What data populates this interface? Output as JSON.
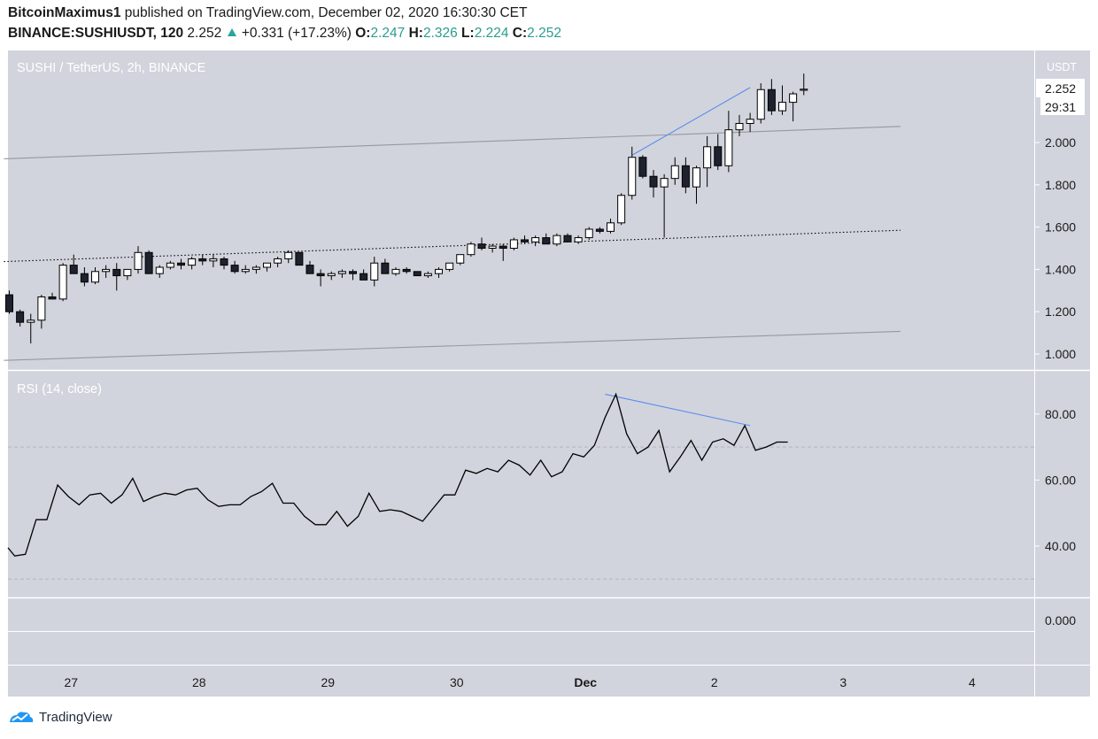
{
  "header": {
    "author": "BitcoinMaximus1",
    "published": "published on TradingView.com, December 02, 2020 16:30:30 CET",
    "symbol": "BINANCE:SUSHIUSDT, 120",
    "price": "2.252",
    "change": "+0.331 (+17.23%)",
    "o_label": "O:",
    "o_val": "2.247",
    "h_label": "H:",
    "h_val": "2.326",
    "l_label": "L:",
    "l_val": "2.224",
    "c_label": "C:",
    "c_val": "2.252"
  },
  "main_pane": {
    "title": "SUSHI / TetherUS, 2h, BINANCE",
    "currency": "USDT",
    "price_badge": "2.252",
    "countdown": "29:31"
  },
  "rsi_pane": {
    "title": "RSI (14, close)"
  },
  "footer": {
    "brand": "TradingView"
  },
  "colors": {
    "up_fill": "#ffffff",
    "down_fill": "#1e222d",
    "trendline": "#5b8def",
    "pane_bg": "#d1d4dc",
    "indicator_line": "#000000"
  },
  "chart_data": [
    {
      "type": "candlestick",
      "title": "SUSHI / TetherUS, 2h, BINANCE",
      "ylim": [
        0.95,
        2.43
      ],
      "y_ticks": [
        "1.000",
        "1.200",
        "1.400",
        "1.600",
        "1.800",
        "2.000"
      ],
      "x_ticks": [
        {
          "label": "27",
          "index": 6
        },
        {
          "label": "28",
          "index": 18
        },
        {
          "label": "29",
          "index": 30
        },
        {
          "label": "30",
          "index": 42
        },
        {
          "label": "Dec",
          "index": 54
        },
        {
          "label": "2",
          "index": 66
        },
        {
          "label": "3",
          "index": 78
        },
        {
          "label": "4",
          "index": 90
        }
      ],
      "candles": [
        [
          1.28,
          1.3,
          1.19,
          1.2
        ],
        [
          1.2,
          1.21,
          1.13,
          1.15
        ],
        [
          1.15,
          1.19,
          1.05,
          1.16
        ],
        [
          1.16,
          1.28,
          1.12,
          1.27
        ],
        [
          1.27,
          1.29,
          1.26,
          1.26
        ],
        [
          1.26,
          1.43,
          1.25,
          1.42
        ],
        [
          1.42,
          1.47,
          1.39,
          1.38
        ],
        [
          1.38,
          1.41,
          1.32,
          1.34
        ],
        [
          1.34,
          1.41,
          1.33,
          1.39
        ],
        [
          1.39,
          1.42,
          1.36,
          1.4
        ],
        [
          1.4,
          1.43,
          1.3,
          1.37
        ],
        [
          1.37,
          1.4,
          1.35,
          1.4
        ],
        [
          1.4,
          1.51,
          1.38,
          1.48
        ],
        [
          1.48,
          1.49,
          1.39,
          1.38
        ],
        [
          1.38,
          1.42,
          1.36,
          1.41
        ],
        [
          1.41,
          1.44,
          1.4,
          1.43
        ],
        [
          1.43,
          1.45,
          1.4,
          1.42
        ],
        [
          1.42,
          1.46,
          1.4,
          1.45
        ],
        [
          1.45,
          1.47,
          1.42,
          1.44
        ],
        [
          1.44,
          1.47,
          1.41,
          1.45
        ],
        [
          1.45,
          1.46,
          1.4,
          1.42
        ],
        [
          1.42,
          1.44,
          1.38,
          1.39
        ],
        [
          1.39,
          1.42,
          1.38,
          1.4
        ],
        [
          1.4,
          1.42,
          1.38,
          1.41
        ],
        [
          1.41,
          1.43,
          1.39,
          1.43
        ],
        [
          1.43,
          1.46,
          1.41,
          1.45
        ],
        [
          1.45,
          1.49,
          1.43,
          1.48
        ],
        [
          1.48,
          1.48,
          1.42,
          1.42
        ],
        [
          1.42,
          1.44,
          1.38,
          1.38
        ],
        [
          1.38,
          1.4,
          1.32,
          1.37
        ],
        [
          1.37,
          1.39,
          1.35,
          1.38
        ],
        [
          1.38,
          1.4,
          1.36,
          1.39
        ],
        [
          1.39,
          1.4,
          1.35,
          1.38
        ],
        [
          1.38,
          1.4,
          1.35,
          1.35
        ],
        [
          1.35,
          1.46,
          1.32,
          1.43
        ],
        [
          1.43,
          1.45,
          1.38,
          1.38
        ],
        [
          1.38,
          1.41,
          1.37,
          1.4
        ],
        [
          1.4,
          1.41,
          1.38,
          1.39
        ],
        [
          1.39,
          1.39,
          1.37,
          1.37
        ],
        [
          1.37,
          1.39,
          1.36,
          1.38
        ],
        [
          1.38,
          1.41,
          1.36,
          1.4
        ],
        [
          1.4,
          1.43,
          1.39,
          1.43
        ],
        [
          1.43,
          1.47,
          1.42,
          1.47
        ],
        [
          1.47,
          1.53,
          1.46,
          1.52
        ],
        [
          1.52,
          1.55,
          1.49,
          1.5
        ],
        [
          1.5,
          1.52,
          1.48,
          1.51
        ],
        [
          1.51,
          1.52,
          1.44,
          1.5
        ],
        [
          1.5,
          1.55,
          1.49,
          1.54
        ],
        [
          1.54,
          1.56,
          1.52,
          1.53
        ],
        [
          1.53,
          1.56,
          1.51,
          1.55
        ],
        [
          1.55,
          1.57,
          1.52,
          1.52
        ],
        [
          1.52,
          1.57,
          1.51,
          1.56
        ],
        [
          1.56,
          1.57,
          1.53,
          1.53
        ],
        [
          1.53,
          1.56,
          1.52,
          1.55
        ],
        [
          1.55,
          1.6,
          1.54,
          1.59
        ],
        [
          1.59,
          1.6,
          1.57,
          1.58
        ],
        [
          1.58,
          1.64,
          1.57,
          1.62
        ],
        [
          1.62,
          1.76,
          1.61,
          1.75
        ],
        [
          1.75,
          1.98,
          1.73,
          1.93
        ],
        [
          1.93,
          1.94,
          1.83,
          1.84
        ],
        [
          1.84,
          1.87,
          1.74,
          1.79
        ],
        [
          1.79,
          1.85,
          1.55,
          1.83
        ],
        [
          1.83,
          1.93,
          1.8,
          1.89
        ],
        [
          1.89,
          1.93,
          1.76,
          1.79
        ],
        [
          1.79,
          1.89,
          1.71,
          1.88
        ],
        [
          1.88,
          2.03,
          1.79,
          1.98
        ],
        [
          1.98,
          2.04,
          1.87,
          1.89
        ],
        [
          1.89,
          2.15,
          1.86,
          2.06
        ],
        [
          2.06,
          2.13,
          2.03,
          2.09
        ],
        [
          2.09,
          2.14,
          2.05,
          2.11
        ],
        [
          2.11,
          2.28,
          2.09,
          2.25
        ],
        [
          2.25,
          2.3,
          2.13,
          2.15
        ],
        [
          2.15,
          2.27,
          2.13,
          2.19
        ],
        [
          2.19,
          2.24,
          2.1,
          2.23
        ],
        [
          2.247,
          2.326,
          2.224,
          2.252
        ]
      ],
      "trend_lines": [
        {
          "x": [
            -0.5,
            83
          ],
          "y": [
            0.97,
            1.107
          ],
          "style": "solid",
          "color": "#9598a1"
        },
        {
          "x": [
            -0.5,
            83
          ],
          "y": [
            1.923,
            2.076
          ],
          "style": "solid",
          "color": "#9598a1"
        },
        {
          "x": [
            -0.5,
            83
          ],
          "y": [
            1.437,
            1.585
          ],
          "style": "dotted",
          "color": "#000000"
        },
        {
          "x": [
            58,
            69
          ],
          "y": [
            1.94,
            2.26
          ],
          "style": "solid",
          "color": "#5b8def"
        }
      ]
    },
    {
      "type": "line",
      "title": "RSI (14, close)",
      "ylim": [
        18,
        100
      ],
      "y_ticks": [
        "40.00",
        "60.00",
        "80.00"
      ],
      "bands": [
        70,
        30
      ],
      "series": [
        {
          "values": [
            39.5,
            37,
            37.5,
            48,
            48,
            58.5,
            55,
            52.5,
            55.5,
            56,
            53,
            55.5,
            60.5,
            53.5,
            55,
            56,
            55.5,
            57,
            57.5,
            54,
            52,
            52.5,
            52.5,
            55,
            56.5,
            59,
            53,
            53,
            49,
            46.5,
            46.5,
            50.5,
            46,
            49,
            56,
            50.5,
            51,
            50.5,
            49,
            47.5,
            51.5,
            55.5,
            55.5,
            63,
            62,
            63.5,
            62.5,
            66,
            64.5,
            61.5,
            66,
            61,
            62.5,
            68,
            67,
            70.5,
            79,
            86,
            74,
            68,
            70,
            75,
            62.5,
            67,
            72,
            66,
            71.5,
            72.5,
            70.5,
            76.5,
            69,
            70,
            71.5,
            71.5
          ]
        }
      ],
      "trend_lines": [
        {
          "x": [
            55.5,
            69
          ],
          "y": [
            86,
            76.5
          ],
          "style": "solid",
          "color": "#5b8def"
        }
      ]
    },
    {
      "type": "line",
      "title": "",
      "y_ticks": [
        "0.000"
      ],
      "series": []
    }
  ]
}
